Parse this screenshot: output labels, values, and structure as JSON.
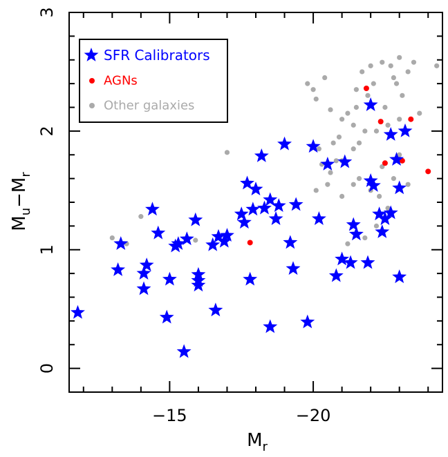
{
  "chart_data": {
    "type": "scatter",
    "xlabel": "M",
    "xlabel_sub": "r",
    "ylabel_parts": [
      "M",
      "u",
      "−M",
      "r"
    ],
    "xlim": [
      -11.5,
      -24.5
    ],
    "ylim": [
      -0.2,
      3.0
    ],
    "xticks": [
      -15,
      -20
    ],
    "xtick_labels": [
      "−15",
      "−20"
    ],
    "yticks": [
      0,
      1,
      2,
      3
    ],
    "ytick_labels": [
      "0",
      "1",
      "2",
      "3"
    ],
    "legend_position": "top-left",
    "colors": {
      "sfr": "#0000ff",
      "agn": "#ff0000",
      "other": "#aaaaaa",
      "axis": "#000000"
    },
    "series": [
      {
        "name": "Other galaxies",
        "marker": "circle",
        "points": [
          [
            -14.0,
            1.28
          ],
          [
            -13.0,
            1.1
          ],
          [
            -13.5,
            1.05
          ],
          [
            -15.9,
            1.08
          ],
          [
            -15.9,
            1.25
          ],
          [
            -17.0,
            1.82
          ],
          [
            -19.8,
            2.4
          ],
          [
            -20.4,
            2.45
          ],
          [
            -20.0,
            2.35
          ],
          [
            -20.1,
            2.27
          ],
          [
            -20.6,
            2.18
          ],
          [
            -21.5,
            2.35
          ],
          [
            -21.0,
            2.1
          ],
          [
            -21.4,
            2.05
          ],
          [
            -20.9,
            1.95
          ],
          [
            -20.7,
            1.9
          ],
          [
            -20.2,
            1.85
          ],
          [
            -20.8,
            1.75
          ],
          [
            -20.3,
            1.72
          ],
          [
            -20.6,
            1.65
          ],
          [
            -21.4,
            1.55
          ],
          [
            -21.0,
            1.45
          ],
          [
            -21.6,
            1.6
          ],
          [
            -22.0,
            1.5
          ],
          [
            -22.3,
            1.45
          ],
          [
            -22.6,
            1.35
          ],
          [
            -23.3,
            1.55
          ],
          [
            -22.2,
            1.2
          ],
          [
            -21.8,
            1.1
          ],
          [
            -21.2,
            1.05
          ],
          [
            -22.5,
            1.25
          ],
          [
            -21.6,
            1.9
          ],
          [
            -22.8,
            1.6
          ],
          [
            -22.4,
            1.7
          ],
          [
            -23.0,
            1.8
          ],
          [
            -22.2,
            2.0
          ],
          [
            -22.5,
            2.2
          ],
          [
            -23.1,
            2.3
          ],
          [
            -22.9,
            2.4
          ],
          [
            -23.3,
            2.5
          ],
          [
            -22.7,
            2.55
          ],
          [
            -23.0,
            2.62
          ],
          [
            -23.5,
            2.58
          ],
          [
            -22.4,
            2.58
          ],
          [
            -22.0,
            2.55
          ],
          [
            -21.7,
            2.5
          ],
          [
            -22.1,
            2.4
          ],
          [
            -21.9,
            2.3
          ],
          [
            -21.5,
            2.2
          ],
          [
            -21.2,
            2.15
          ],
          [
            -22.6,
            2.05
          ],
          [
            -23.0,
            2.1
          ],
          [
            -23.7,
            2.15
          ],
          [
            -24.3,
            2.55
          ],
          [
            -22.8,
            2.45
          ],
          [
            -21.8,
            2.0
          ],
          [
            -21.4,
            1.85
          ],
          [
            -21.0,
            1.75
          ],
          [
            -20.5,
            1.55
          ],
          [
            -20.1,
            1.5
          ]
        ]
      },
      {
        "name": "AGNs",
        "marker": "circle",
        "points": [
          [
            -17.8,
            1.06
          ],
          [
            -21.85,
            2.36
          ],
          [
            -22.35,
            2.08
          ],
          [
            -23.4,
            2.1
          ],
          [
            -22.5,
            1.73
          ],
          [
            -23.1,
            1.75
          ],
          [
            -24.0,
            1.66
          ]
        ]
      },
      {
        "name": "SFR Calibrators",
        "marker": "star",
        "points": [
          [
            -11.8,
            0.47
          ],
          [
            -13.3,
            1.05
          ],
          [
            -13.2,
            0.83
          ],
          [
            -14.1,
            0.8
          ],
          [
            -14.2,
            0.87
          ],
          [
            -14.1,
            0.67
          ],
          [
            -14.4,
            1.34
          ],
          [
            -14.6,
            1.14
          ],
          [
            -14.9,
            0.43
          ],
          [
            -15.0,
            0.75
          ],
          [
            -15.2,
            1.03
          ],
          [
            -15.3,
            1.05
          ],
          [
            -15.6,
            1.09
          ],
          [
            -15.5,
            0.14
          ],
          [
            -15.9,
            1.25
          ],
          [
            -16.0,
            0.79
          ],
          [
            -16.0,
            0.7
          ],
          [
            -16.0,
            0.74
          ],
          [
            -16.5,
            1.04
          ],
          [
            -16.6,
            0.49
          ],
          [
            -16.7,
            1.11
          ],
          [
            -16.9,
            1.07
          ],
          [
            -17.0,
            1.12
          ],
          [
            -17.5,
            1.3
          ],
          [
            -17.6,
            1.23
          ],
          [
            -17.7,
            1.56
          ],
          [
            -17.8,
            0.75
          ],
          [
            -17.9,
            1.34
          ],
          [
            -18.0,
            1.51
          ],
          [
            -18.2,
            1.79
          ],
          [
            -18.3,
            1.35
          ],
          [
            -18.5,
            0.35
          ],
          [
            -18.5,
            1.42
          ],
          [
            -18.7,
            1.26
          ],
          [
            -18.8,
            1.37
          ],
          [
            -19.0,
            1.89
          ],
          [
            -19.2,
            1.06
          ],
          [
            -19.3,
            0.84
          ],
          [
            -19.4,
            1.38
          ],
          [
            -19.8,
            0.39
          ],
          [
            -20.0,
            1.87
          ],
          [
            -20.2,
            1.26
          ],
          [
            -20.5,
            1.72
          ],
          [
            -20.8,
            0.78
          ],
          [
            -21.0,
            0.92
          ],
          [
            -21.1,
            1.74
          ],
          [
            -21.3,
            0.89
          ],
          [
            -21.4,
            1.21
          ],
          [
            -21.5,
            1.13
          ],
          [
            -21.9,
            0.89
          ],
          [
            -22.0,
            2.22
          ],
          [
            -22.0,
            1.58
          ],
          [
            -22.1,
            1.54
          ],
          [
            -22.3,
            1.3
          ],
          [
            -22.4,
            1.15
          ],
          [
            -22.5,
            1.26
          ],
          [
            -22.7,
            1.31
          ],
          [
            -22.7,
            1.97
          ],
          [
            -22.9,
            1.76
          ],
          [
            -23.0,
            1.52
          ],
          [
            -23.0,
            0.77
          ],
          [
            -23.2,
            2.0
          ]
        ]
      }
    ]
  }
}
